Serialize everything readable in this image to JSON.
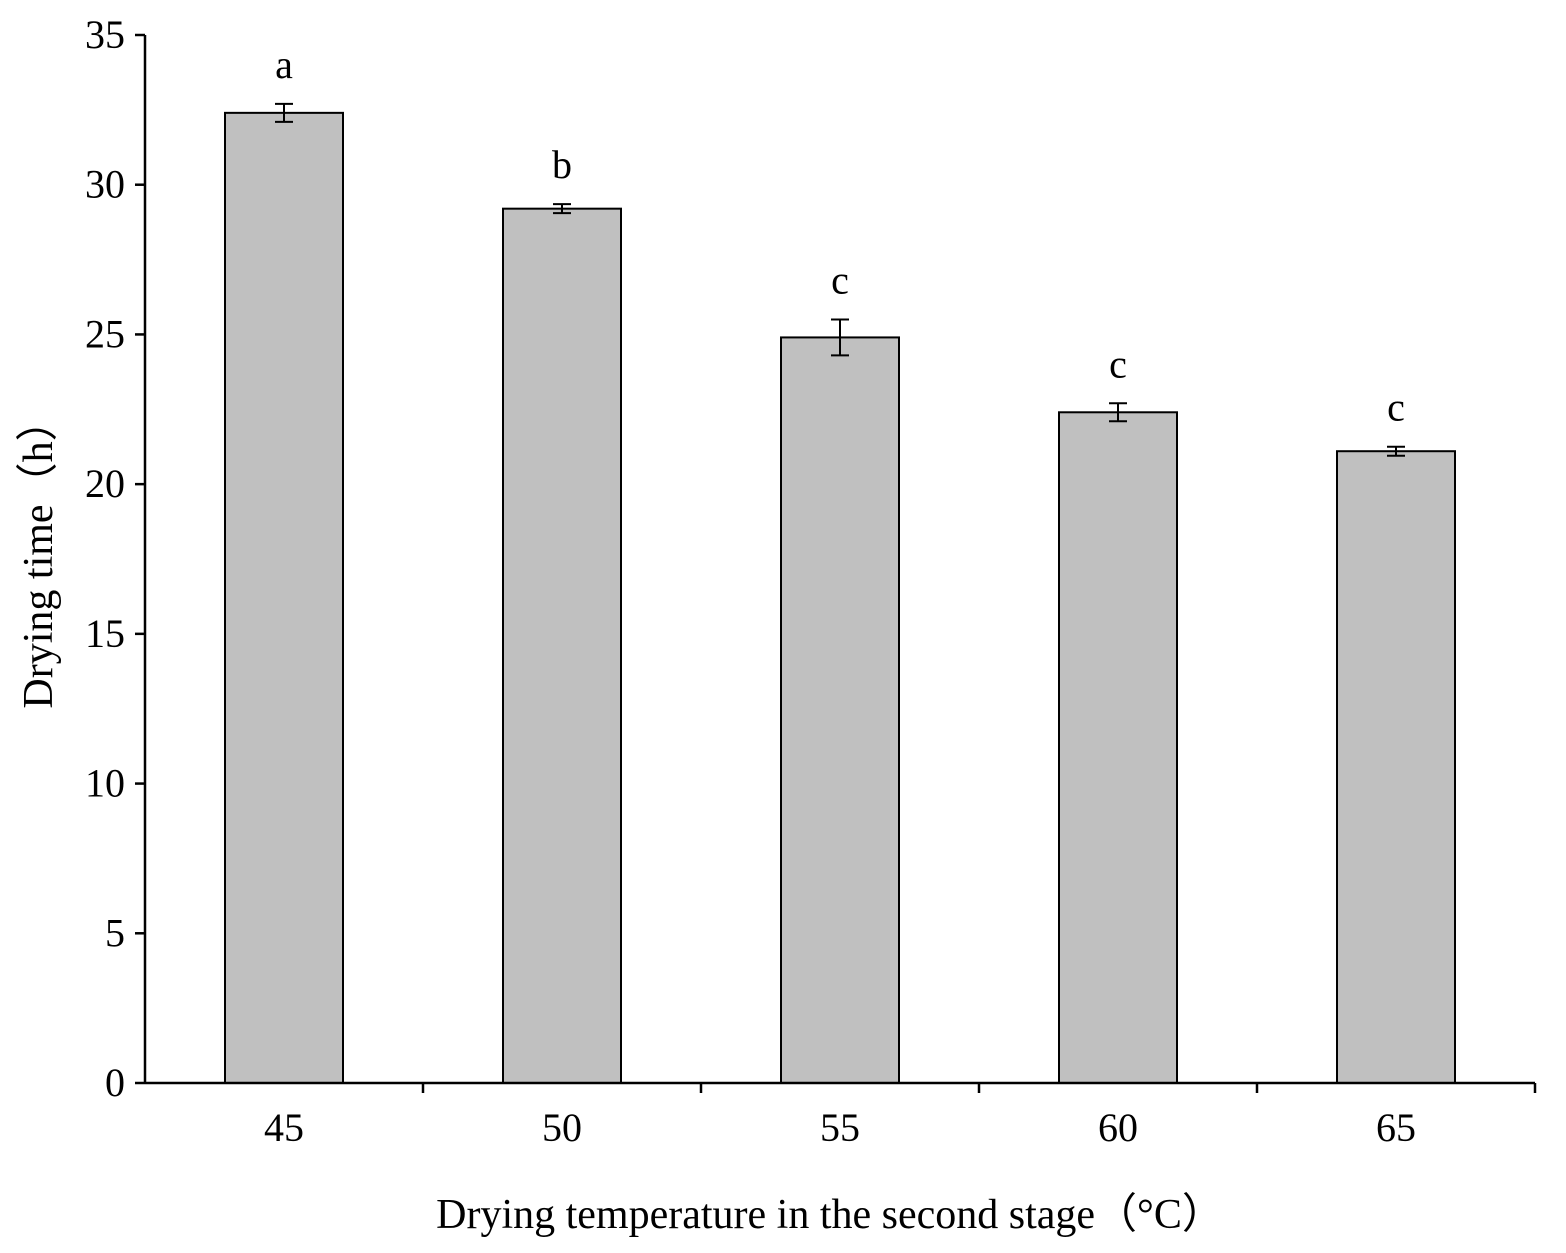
{
  "chart_data": {
    "type": "bar",
    "title": "",
    "xlabel": "Drying temperature in the second stage（°C）",
    "ylabel": "Drying time（h）",
    "categories": [
      "45",
      "50",
      "55",
      "60",
      "65"
    ],
    "values": [
      32.4,
      29.2,
      24.9,
      22.4,
      21.1
    ],
    "errors": [
      0.3,
      0.15,
      0.6,
      0.3,
      0.15
    ],
    "significance": [
      "a",
      "b",
      "c",
      "c",
      "c"
    ],
    "ylim": [
      0,
      35
    ],
    "yticks": [
      0,
      5,
      10,
      15,
      20,
      25,
      30,
      35
    ],
    "bar_color": "#c0c0c0",
    "grid": false
  }
}
